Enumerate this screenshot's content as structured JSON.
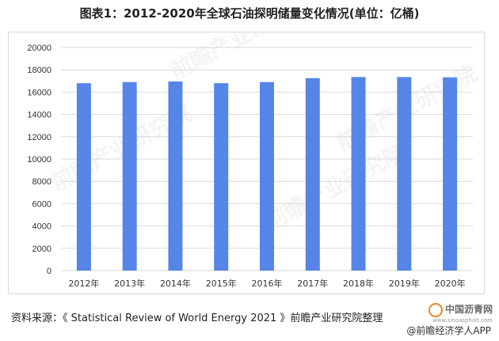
{
  "title": "图表1：2012-2020年全球石油探明储量变化情况(单位：亿桶)",
  "source": "资料来源：《 Statistical Review of World Energy 2021 》前瞻产业研究院整理",
  "watermark": {
    "site": "中国沥青网",
    "url": "www.sinoasphalt.com",
    "app": "@前瞻经济学人APP",
    "overlay": "前瞻产业研究院"
  },
  "colors": {
    "bar": "#5585E6",
    "grid": "#d9d9d9",
    "axis_text": "#333333"
  },
  "chart_data": {
    "type": "bar",
    "title": "图表1：2012-2020年全球石油探明储量变化情况(单位：亿桶)",
    "categories": [
      "2012年",
      "2013年",
      "2014年",
      "2015年",
      "2016年",
      "2017年",
      "2018年",
      "2019年",
      "2020年"
    ],
    "values": [
      16800,
      16900,
      16950,
      16800,
      16900,
      17250,
      17350,
      17350,
      17320
    ],
    "ylim": [
      0,
      20000
    ],
    "yticks": [
      0,
      2000,
      4000,
      6000,
      8000,
      10000,
      12000,
      14000,
      16000,
      18000,
      20000
    ],
    "grid": true,
    "legend": "none"
  }
}
